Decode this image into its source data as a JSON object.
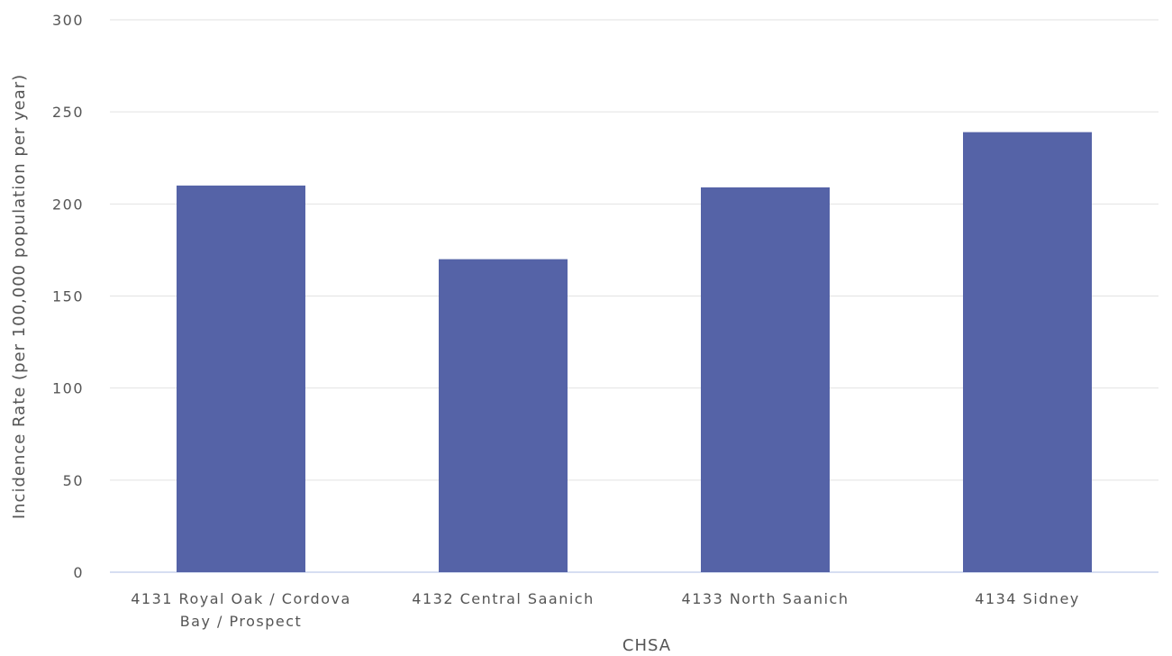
{
  "chart_data": {
    "type": "bar",
    "categories": [
      [
        "4131 Royal Oak / Cordova",
        "Bay / Prospect"
      ],
      [
        "4132 Central Saanich"
      ],
      [
        "4133 North Saanich"
      ],
      [
        "4134 Sidney"
      ]
    ],
    "values": [
      210,
      170,
      209,
      239
    ],
    "xlabel": "CHSA",
    "ylabel": "Incidence Rate (per 100,000 population per year)",
    "ylim": [
      0,
      300
    ],
    "yticks": [
      0,
      50,
      100,
      150,
      200,
      250,
      300
    ],
    "grid": true,
    "bar_color": "#5563a7",
    "grid_color": "#e2e2e2",
    "baseline_color": "#c9d3ee"
  }
}
